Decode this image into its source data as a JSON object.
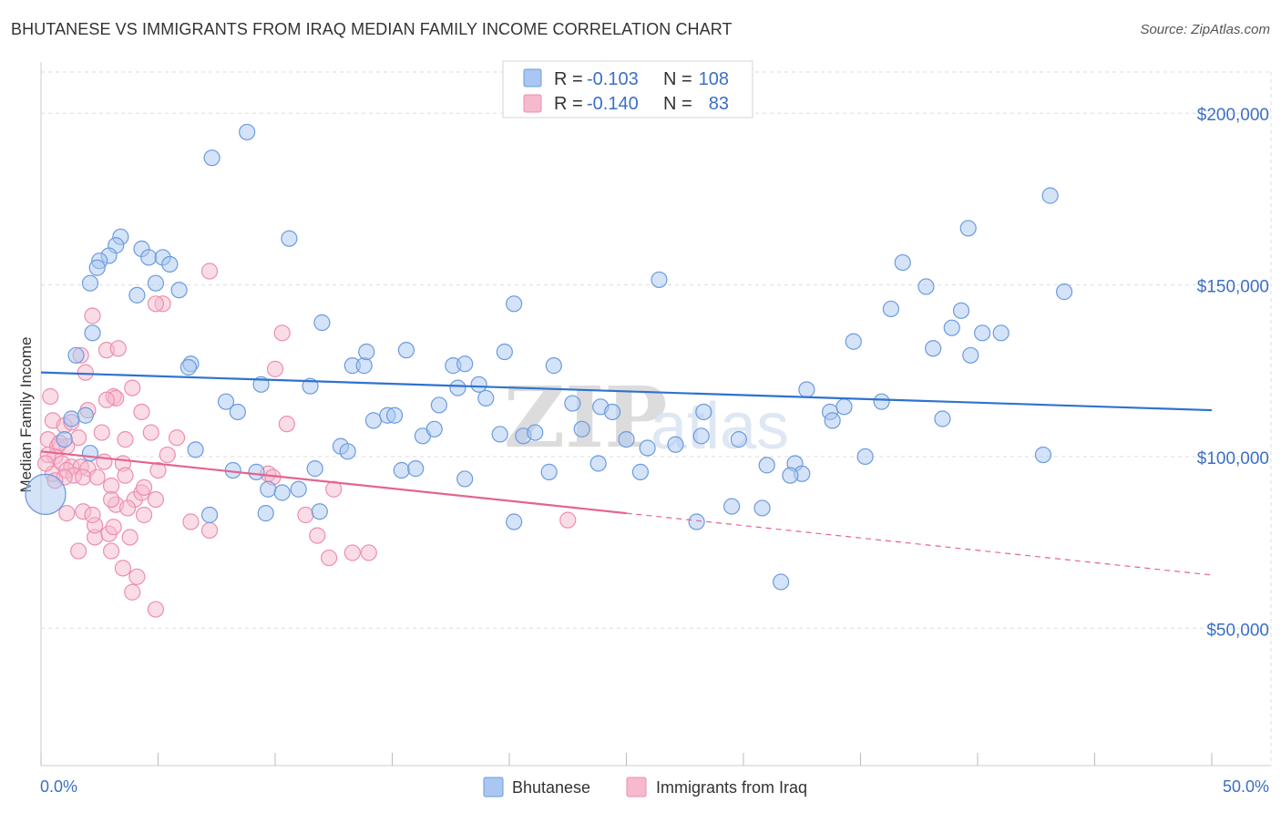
{
  "title": "BHUTANESE VS IMMIGRANTS FROM IRAQ MEDIAN FAMILY INCOME CORRELATION CHART",
  "source": "Source: ZipAtlas.com",
  "watermark": {
    "zip": "ZIP",
    "atlas": "atlas"
  },
  "colors": {
    "blue_fill": "#a9c7f0",
    "blue_stroke": "#6b9be0",
    "blue_line": "#2f72cf",
    "pink_fill": "#f6b9cd",
    "pink_stroke": "#ec8fae",
    "pink_line": "#e4648f",
    "label": "#3b6fc6",
    "grid": "#dddddd"
  },
  "legend_top": {
    "rows": [
      {
        "r_label": "R =",
        "r_value": "-0.103",
        "n_label": "N =",
        "n_value": "108"
      },
      {
        "r_label": "R =",
        "r_value": "-0.140",
        "n_label": "N =",
        "n_value": "83"
      }
    ]
  },
  "chart_data": {
    "type": "scatter",
    "title": "BHUTANESE VS IMMIGRANTS FROM IRAQ MEDIAN FAMILY INCOME CORRELATION CHART",
    "xlabel": "",
    "ylabel": "Median Family Income",
    "xlim": [
      0,
      50
    ],
    "ylim": [
      10000,
      212000
    ],
    "x_tick_labels": [
      "0.0%",
      "50.0%"
    ],
    "y_ticks": [
      {
        "value": 200000,
        "label": "$200,000"
      },
      {
        "value": 150000,
        "label": "$150,000"
      },
      {
        "value": 100000,
        "label": "$100,000"
      },
      {
        "value": 50000,
        "label": "$50,000"
      }
    ],
    "grid": "horizontal dashed",
    "legend_placement": "bottom-center",
    "series": [
      {
        "name": "Bhutanese",
        "r": -0.103,
        "n": 108,
        "trend": {
          "x0": 0,
          "y0": 124500,
          "x1": 50,
          "y1": 113500
        },
        "points": [
          [
            7.3,
            187000
          ],
          [
            8.8,
            194500
          ],
          [
            10.6,
            163500
          ],
          [
            3.4,
            164000
          ],
          [
            4.3,
            160500
          ],
          [
            3.2,
            161500
          ],
          [
            2.9,
            158500
          ],
          [
            4.6,
            158000
          ],
          [
            5.2,
            158000
          ],
          [
            2.5,
            157000
          ],
          [
            5.5,
            156000
          ],
          [
            2.4,
            155000
          ],
          [
            2.1,
            150500
          ],
          [
            4.9,
            150500
          ],
          [
            5.9,
            148500
          ],
          [
            4.1,
            147000
          ],
          [
            2.2,
            136000
          ],
          [
            1.5,
            129500
          ],
          [
            6.4,
            127000
          ],
          [
            6.3,
            126000
          ],
          [
            7.9,
            116000
          ],
          [
            8.4,
            113000
          ],
          [
            9.4,
            121000
          ],
          [
            11.5,
            120500
          ],
          [
            12.0,
            139000
          ],
          [
            13.3,
            126500
          ],
          [
            13.8,
            126500
          ],
          [
            13.9,
            130500
          ],
          [
            14.2,
            110500
          ],
          [
            14.8,
            112000
          ],
          [
            15.1,
            112000
          ],
          [
            15.6,
            131000
          ],
          [
            16.3,
            106000
          ],
          [
            16.8,
            108000
          ],
          [
            17.0,
            115000
          ],
          [
            17.6,
            126500
          ],
          [
            18.1,
            127000
          ],
          [
            17.8,
            120000
          ],
          [
            18.7,
            121000
          ],
          [
            19.0,
            117000
          ],
          [
            19.6,
            106500
          ],
          [
            19.8,
            130500
          ],
          [
            20.2,
            144500
          ],
          [
            20.6,
            106000
          ],
          [
            21.1,
            107000
          ],
          [
            21.9,
            126500
          ],
          [
            21.7,
            95500
          ],
          [
            22.7,
            115500
          ],
          [
            23.1,
            108000
          ],
          [
            23.9,
            114500
          ],
          [
            24.4,
            113000
          ],
          [
            23.8,
            98000
          ],
          [
            25.0,
            105000
          ],
          [
            25.6,
            95500
          ],
          [
            25.9,
            102500
          ],
          [
            26.4,
            151500
          ],
          [
            1.3,
            111000
          ],
          [
            1.9,
            112000
          ],
          [
            6.6,
            102000
          ],
          [
            8.2,
            96000
          ],
          [
            9.2,
            95500
          ],
          [
            9.6,
            83500
          ],
          [
            9.7,
            90500
          ],
          [
            10.3,
            89500
          ],
          [
            11.0,
            90500
          ],
          [
            11.7,
            96500
          ],
          [
            11.9,
            84000
          ],
          [
            12.8,
            103000
          ],
          [
            13.1,
            101500
          ],
          [
            15.4,
            96000
          ],
          [
            16.0,
            96500
          ],
          [
            18.1,
            93500
          ],
          [
            20.2,
            81000
          ],
          [
            7.2,
            83000
          ],
          [
            2.1,
            101000
          ],
          [
            1.0,
            105000
          ],
          [
            27.1,
            103500
          ],
          [
            28.2,
            106000
          ],
          [
            28.3,
            113000
          ],
          [
            28.0,
            81000
          ],
          [
            29.8,
            105000
          ],
          [
            29.5,
            85500
          ],
          [
            30.8,
            85000
          ],
          [
            31.0,
            97500
          ],
          [
            31.6,
            63500
          ],
          [
            32.2,
            98000
          ],
          [
            32.5,
            95000
          ],
          [
            32.0,
            94500
          ],
          [
            32.7,
            119500
          ],
          [
            33.7,
            113000
          ],
          [
            33.8,
            110500
          ],
          [
            34.3,
            114500
          ],
          [
            34.7,
            133500
          ],
          [
            35.2,
            100000
          ],
          [
            35.9,
            116000
          ],
          [
            36.3,
            143000
          ],
          [
            36.8,
            156500
          ],
          [
            37.8,
            149500
          ],
          [
            38.1,
            131500
          ],
          [
            38.5,
            111000
          ],
          [
            38.9,
            137500
          ],
          [
            39.3,
            142500
          ],
          [
            39.7,
            129500
          ],
          [
            40.2,
            136000
          ],
          [
            41.0,
            136000
          ],
          [
            39.6,
            166500
          ],
          [
            42.8,
            100500
          ],
          [
            43.7,
            148000
          ],
          [
            43.1,
            176000
          ],
          [
            0.2,
            89000
          ]
        ]
      },
      {
        "name": "Immigrants from Iraq",
        "r": -0.14,
        "n": 83,
        "trend": {
          "x0": 0,
          "y0": 101500,
          "x1": 25,
          "y1": 83500,
          "dashed_to_x": 50,
          "dashed_to_y": 65500
        },
        "points": [
          [
            0.4,
            117500
          ],
          [
            1.7,
            129500
          ],
          [
            1.9,
            124500
          ],
          [
            2.2,
            141000
          ],
          [
            2.8,
            131000
          ],
          [
            3.3,
            131500
          ],
          [
            3.1,
            117500
          ],
          [
            3.9,
            120000
          ],
          [
            3.2,
            117000
          ],
          [
            2.8,
            116500
          ],
          [
            0.5,
            110500
          ],
          [
            1.0,
            109000
          ],
          [
            1.3,
            110000
          ],
          [
            1.6,
            105500
          ],
          [
            2.6,
            107000
          ],
          [
            3.6,
            105000
          ],
          [
            0.3,
            105000
          ],
          [
            0.7,
            103000
          ],
          [
            1.1,
            103000
          ],
          [
            0.6,
            100000
          ],
          [
            0.9,
            98000
          ],
          [
            1.3,
            97000
          ],
          [
            1.7,
            97000
          ],
          [
            2.0,
            96500
          ],
          [
            1.1,
            96000
          ],
          [
            0.5,
            95000
          ],
          [
            1.4,
            94500
          ],
          [
            1.8,
            94000
          ],
          [
            2.4,
            94000
          ],
          [
            2.7,
            98500
          ],
          [
            3.5,
            98000
          ],
          [
            3.0,
            91500
          ],
          [
            3.6,
            94500
          ],
          [
            3.2,
            86000
          ],
          [
            3.0,
            87500
          ],
          [
            4.0,
            87500
          ],
          [
            4.3,
            89500
          ],
          [
            4.4,
            91000
          ],
          [
            4.9,
            87500
          ],
          [
            4.7,
            107000
          ],
          [
            5.4,
            100500
          ],
          [
            5.8,
            105500
          ],
          [
            5.2,
            144500
          ],
          [
            4.9,
            144500
          ],
          [
            7.2,
            154000
          ],
          [
            10.3,
            136000
          ],
          [
            10.0,
            125500
          ],
          [
            10.5,
            109500
          ],
          [
            9.7,
            95000
          ],
          [
            9.9,
            94000
          ],
          [
            11.3,
            83000
          ],
          [
            11.8,
            77000
          ],
          [
            12.3,
            70500
          ],
          [
            13.3,
            72000
          ],
          [
            12.5,
            90500
          ],
          [
            14.0,
            72000
          ],
          [
            6.4,
            81000
          ],
          [
            7.2,
            78500
          ],
          [
            2.3,
            76500
          ],
          [
            3.8,
            76500
          ],
          [
            2.9,
            77500
          ],
          [
            2.3,
            80000
          ],
          [
            3.0,
            72500
          ],
          [
            1.6,
            72500
          ],
          [
            1.1,
            83500
          ],
          [
            1.8,
            84000
          ],
          [
            2.2,
            83000
          ],
          [
            4.4,
            83000
          ],
          [
            3.5,
            67500
          ],
          [
            4.1,
            65000
          ],
          [
            3.9,
            60500
          ],
          [
            4.9,
            55500
          ],
          [
            22.5,
            81500
          ],
          [
            0.3,
            100500
          ],
          [
            0.2,
            98000
          ],
          [
            0.8,
            104000
          ],
          [
            1.0,
            94000
          ],
          [
            3.1,
            79500
          ],
          [
            4.3,
            113000
          ],
          [
            5.0,
            96000
          ],
          [
            2.0,
            113500
          ],
          [
            3.7,
            85000
          ],
          [
            0.6,
            93000
          ]
        ]
      }
    ]
  },
  "legend_bottom": [
    {
      "label": "Bhutanese"
    },
    {
      "label": "Immigrants from Iraq"
    }
  ]
}
